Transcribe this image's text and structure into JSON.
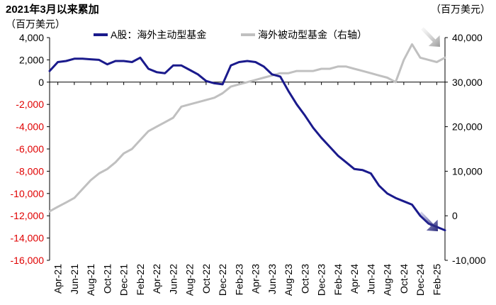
{
  "chart_data": {
    "type": "line",
    "title": "2021年3月以来累加",
    "y_left_unit": "（百万美元）",
    "y_right_unit": "（百万美元）",
    "ylim_left": [
      -16000,
      4000
    ],
    "ylim_right": [
      -10000,
      40000
    ],
    "yticks_left": [
      "4,000",
      "2,000",
      "0",
      "-2,000",
      "-4,000",
      "-6,000",
      "-8,000",
      "-10,000",
      "-12,000",
      "-14,000",
      "-16,000"
    ],
    "yticks_left_values": [
      4000,
      2000,
      0,
      -2000,
      -4000,
      -6000,
      -8000,
      -10000,
      -12000,
      -14000,
      -16000
    ],
    "yticks_left_negative_color": "#e00000",
    "yticks_right": [
      "40,000",
      "30,000",
      "20,000",
      "10,000",
      "0",
      "-10,000"
    ],
    "yticks_right_values": [
      40000,
      30000,
      20000,
      10000,
      0,
      -10000
    ],
    "x_ticks": [
      "Apr-21",
      "Jun-21",
      "Aug-21",
      "Oct-21",
      "Dec-21",
      "Feb-22",
      "Apr-22",
      "Jun-22",
      "Aug-22",
      "Oct-22",
      "Dec-22",
      "Feb-23",
      "Apr-23",
      "Jun-23",
      "Aug-23",
      "Oct-23",
      "Dec-23",
      "Feb-24",
      "Apr-24",
      "Jun-24",
      "Aug-24",
      "Oct-24",
      "Dec-24",
      "Feb-25"
    ],
    "legend_position": "top",
    "grid": false,
    "series": [
      {
        "name": "A股：海外主动型基金",
        "axis": "left",
        "color": "#1a1a8c",
        "x": [
          "2021-03",
          "2021-04",
          "2021-05",
          "2021-06",
          "2021-07",
          "2021-08",
          "2021-09",
          "2021-10",
          "2021-11",
          "2021-12",
          "2022-01",
          "2022-02",
          "2022-03",
          "2022-04",
          "2022-05",
          "2022-06",
          "2022-07",
          "2022-08",
          "2022-09",
          "2022-10",
          "2022-11",
          "2022-12",
          "2023-01",
          "2023-02",
          "2023-03",
          "2023-04",
          "2023-05",
          "2023-06",
          "2023-07",
          "2023-08",
          "2023-09",
          "2023-10",
          "2023-11",
          "2023-12",
          "2024-01",
          "2024-02",
          "2024-03",
          "2024-04",
          "2024-05",
          "2024-06",
          "2024-07",
          "2024-08",
          "2024-09",
          "2024-10",
          "2024-11",
          "2024-12",
          "2025-01",
          "2025-02",
          "2025-03"
        ],
        "values": [
          1000,
          1800,
          1900,
          2100,
          2100,
          2050,
          2000,
          1600,
          1900,
          1900,
          1800,
          2200,
          1200,
          900,
          800,
          1500,
          1500,
          1100,
          700,
          100,
          -100,
          -200,
          1500,
          1800,
          1900,
          1800,
          1400,
          700,
          500,
          -800,
          -2000,
          -3000,
          -4100,
          -5000,
          -5800,
          -6600,
          -7200,
          -7800,
          -7900,
          -8200,
          -9300,
          -10000,
          -10400,
          -10700,
          -11000,
          -12000,
          -12700,
          -13000,
          -13300
        ]
      },
      {
        "name": "海外被动型基金（右轴）",
        "axis": "right",
        "color": "#c0c0c0",
        "x": [
          "2021-03",
          "2021-04",
          "2021-05",
          "2021-06",
          "2021-07",
          "2021-08",
          "2021-09",
          "2021-10",
          "2021-11",
          "2021-12",
          "2022-01",
          "2022-02",
          "2022-03",
          "2022-04",
          "2022-05",
          "2022-06",
          "2022-07",
          "2022-08",
          "2022-09",
          "2022-10",
          "2022-11",
          "2022-12",
          "2023-01",
          "2023-02",
          "2023-03",
          "2023-04",
          "2023-05",
          "2023-06",
          "2023-07",
          "2023-08",
          "2023-09",
          "2023-10",
          "2023-11",
          "2023-12",
          "2024-01",
          "2024-02",
          "2024-03",
          "2024-04",
          "2024-05",
          "2024-06",
          "2024-07",
          "2024-08",
          "2024-09",
          "2024-10",
          "2024-11",
          "2024-12",
          "2025-01",
          "2025-02",
          "2025-03"
        ],
        "values": [
          1000,
          2000,
          3000,
          4000,
          6000,
          8000,
          9500,
          10500,
          12000,
          14000,
          15000,
          17000,
          19000,
          20000,
          21000,
          22000,
          24500,
          25000,
          25500,
          26000,
          26500,
          27500,
          29000,
          29500,
          30000,
          30500,
          31000,
          31500,
          32000,
          32000,
          32500,
          32500,
          32500,
          33000,
          33000,
          33500,
          33500,
          33000,
          32500,
          32000,
          31500,
          31000,
          30000,
          35000,
          38500,
          35500,
          35000,
          34500,
          35500
        ]
      }
    ]
  }
}
